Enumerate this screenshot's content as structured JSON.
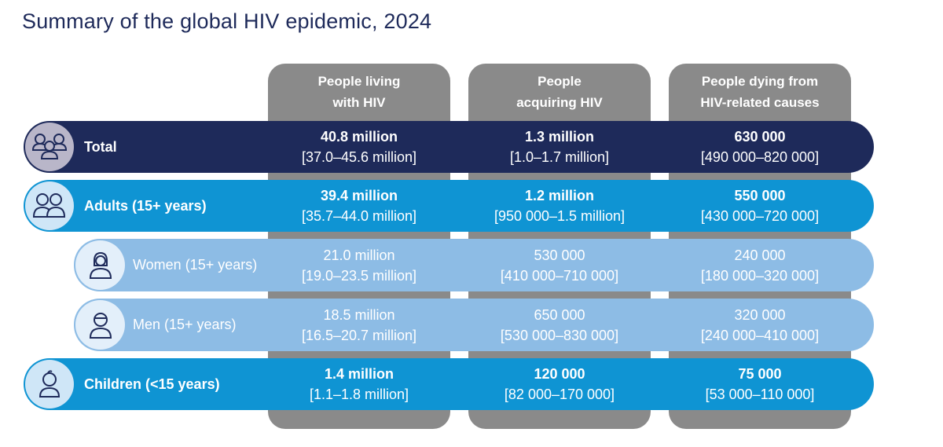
{
  "title": "Summary of the global HIV epidemic, 2024",
  "colors": {
    "title": "#1e2a5a",
    "column_header": "#8a8a8a",
    "total_row": "#1e2a5a",
    "adults_children_row": "#0f94d3",
    "sex_row": "#8dbce5"
  },
  "chart_data": {
    "type": "table",
    "columns": [
      "People living\nwith HIV",
      "People\nacquiring HIV",
      "People dying from\nHIV-related causes"
    ],
    "rows": [
      {
        "label": "Total",
        "icon": "group-people-icon",
        "cells": [
          {
            "value": "40.8 million",
            "range": "[37.0–45.6 million]"
          },
          {
            "value": "1.3 million",
            "range": "[1.0–1.7 million]"
          },
          {
            "value": "630 000",
            "range": "[490 000–820 000]"
          }
        ]
      },
      {
        "label": "Adults (15+ years)",
        "icon": "adults-icon",
        "cells": [
          {
            "value": "39.4 million",
            "range": "[35.7–44.0 million]"
          },
          {
            "value": "1.2 million",
            "range": "[950 000–1.5 million]"
          },
          {
            "value": "550 000",
            "range": "[430 000–720 000]"
          }
        ]
      },
      {
        "label": "Women (15+ years)",
        "icon": "woman-icon",
        "cells": [
          {
            "value": "21.0 million",
            "range": "[19.0–23.5 million]"
          },
          {
            "value": "530 000",
            "range": "[410 000–710 000]"
          },
          {
            "value": "240 000",
            "range": "[180 000–320 000]"
          }
        ]
      },
      {
        "label": "Men (15+ years)",
        "icon": "man-icon",
        "cells": [
          {
            "value": "18.5 million",
            "range": "[16.5–20.7 million]"
          },
          {
            "value": "650 000",
            "range": "[530 000–830 000]"
          },
          {
            "value": "320 000",
            "range": "[240 000–410 000]"
          }
        ]
      },
      {
        "label": "Children (<15 years)",
        "icon": "child-icon",
        "cells": [
          {
            "value": "1.4 million",
            "range": "[1.1–1.8 million]"
          },
          {
            "value": "120 000",
            "range": "[82 000–170 000]"
          },
          {
            "value": "75 000",
            "range": "[53 000–110 000]"
          }
        ]
      }
    ]
  }
}
